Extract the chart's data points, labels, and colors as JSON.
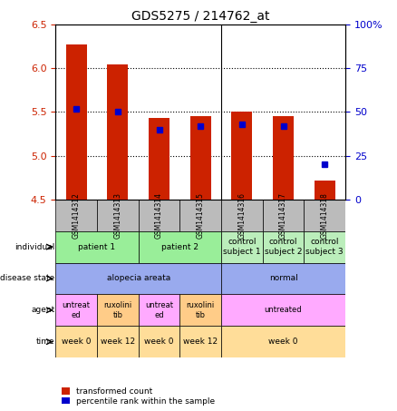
{
  "title": "GDS5275 / 214762_at",
  "samples": [
    "GSM1414312",
    "GSM1414313",
    "GSM1414314",
    "GSM1414315",
    "GSM1414316",
    "GSM1414317",
    "GSM1414318"
  ],
  "transformed_counts": [
    6.27,
    6.05,
    5.43,
    5.45,
    5.5,
    5.45,
    4.72
  ],
  "percentile_ranks": [
    52,
    50,
    40,
    42,
    43,
    42,
    20
  ],
  "ylim_left": [
    4.5,
    6.5
  ],
  "ylim_right": [
    0,
    100
  ],
  "yticks_left": [
    4.5,
    5.0,
    5.5,
    6.0,
    6.5
  ],
  "yticks_right": [
    0,
    25,
    50,
    75,
    100
  ],
  "bar_color": "#CC2200",
  "dot_color": "#0000CC",
  "individual_groups": [
    {
      "label": "patient 1",
      "span": [
        0,
        1
      ],
      "color": "#99EE99"
    },
    {
      "label": "patient 2",
      "span": [
        2,
        3
      ],
      "color": "#99EE99"
    },
    {
      "label": "control\nsubject 1",
      "span": [
        4,
        4
      ],
      "color": "#BBEEBB"
    },
    {
      "label": "control\nsubject 2",
      "span": [
        5,
        5
      ],
      "color": "#BBEEBB"
    },
    {
      "label": "control\nsubject 3",
      "span": [
        6,
        6
      ],
      "color": "#BBEEBB"
    }
  ],
  "disease_groups": [
    {
      "label": "alopecia areata",
      "span": [
        0,
        3
      ],
      "color": "#99AAEE"
    },
    {
      "label": "normal",
      "span": [
        4,
        6
      ],
      "color": "#99AAEE"
    }
  ],
  "agent_groups": [
    {
      "label": "untreat\ned",
      "span": [
        0,
        0
      ],
      "color": "#FFAAFF"
    },
    {
      "label": "ruxolini\ntib",
      "span": [
        1,
        1
      ],
      "color": "#FFCC88"
    },
    {
      "label": "untreat\ned",
      "span": [
        2,
        2
      ],
      "color": "#FFAAFF"
    },
    {
      "label": "ruxolini\ntib",
      "span": [
        3,
        3
      ],
      "color": "#FFCC88"
    },
    {
      "label": "untreated",
      "span": [
        4,
        6
      ],
      "color": "#FFAAFF"
    }
  ],
  "time_groups": [
    {
      "label": "week 0",
      "span": [
        0,
        0
      ],
      "color": "#FFDD99"
    },
    {
      "label": "week 12",
      "span": [
        1,
        1
      ],
      "color": "#FFDD99"
    },
    {
      "label": "week 0",
      "span": [
        2,
        2
      ],
      "color": "#FFDD99"
    },
    {
      "label": "week 12",
      "span": [
        3,
        3
      ],
      "color": "#FFDD99"
    },
    {
      "label": "week 0",
      "span": [
        4,
        6
      ],
      "color": "#FFDD99"
    }
  ],
  "row_label_names": [
    "individual",
    "disease state",
    "agent",
    "time"
  ],
  "axis_left_color": "#CC2200",
  "axis_right_color": "#0000CC",
  "sample_bg_color": "#BBBBBB"
}
